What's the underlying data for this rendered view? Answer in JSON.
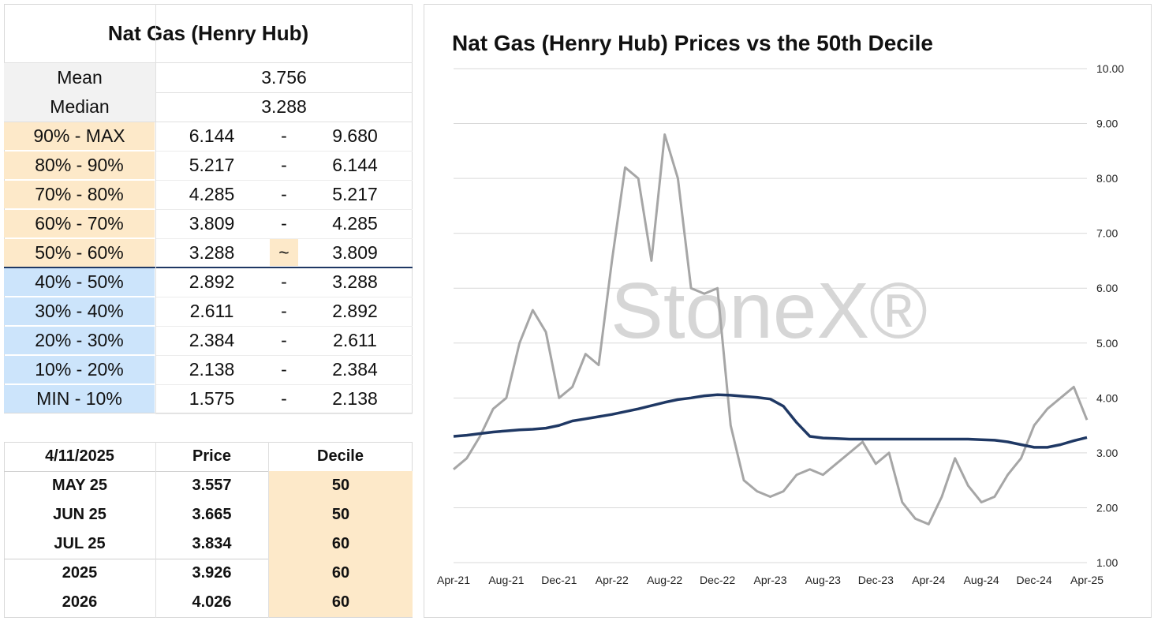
{
  "stats_table": {
    "title": "Nat Gas (Henry Hub)",
    "summary": [
      [
        "Mean",
        "3.756"
      ],
      [
        "Median",
        "3.288"
      ]
    ],
    "deciles": [
      [
        "90% - MAX",
        "6.144",
        "-",
        "9.680"
      ],
      [
        "80% - 90%",
        "5.217",
        "-",
        "6.144"
      ],
      [
        "70% - 80%",
        "4.285",
        "-",
        "5.217"
      ],
      [
        "60% - 70%",
        "3.809",
        "-",
        "4.285"
      ],
      [
        "50% - 60%",
        "3.288",
        "~",
        "3.809"
      ],
      [
        "40% - 50%",
        "2.892",
        "-",
        "3.288"
      ],
      [
        "30% - 40%",
        "2.611",
        "-",
        "2.892"
      ],
      [
        "20% - 30%",
        "2.384",
        "-",
        "2.611"
      ],
      [
        "10% - 20%",
        "2.138",
        "-",
        "2.384"
      ],
      [
        "MIN - 10%",
        "1.575",
        "-",
        "2.138"
      ]
    ]
  },
  "forward_table": {
    "header": [
      "4/11/2025",
      "Price",
      "Decile"
    ],
    "rows": [
      [
        "MAY 25",
        "3.557",
        "50"
      ],
      [
        "JUN 25",
        "3.665",
        "50"
      ],
      [
        "JUL 25",
        "3.834",
        "60"
      ],
      [
        "2025",
        "3.926",
        "60"
      ],
      [
        "2026",
        "4.026",
        "60"
      ]
    ]
  },
  "chart_data": {
    "type": "line",
    "title": "Nat Gas (Henry Hub) Prices vs the 50th Decile",
    "watermark": "StoneX®",
    "x": [
      "Apr-21",
      "May-21",
      "Jun-21",
      "Jul-21",
      "Aug-21",
      "Sep-21",
      "Oct-21",
      "Nov-21",
      "Dec-21",
      "Jan-22",
      "Feb-22",
      "Mar-22",
      "Apr-22",
      "May-22",
      "Jun-22",
      "Jul-22",
      "Aug-22",
      "Sep-22",
      "Oct-22",
      "Nov-22",
      "Dec-22",
      "Jan-23",
      "Feb-23",
      "Mar-23",
      "Apr-23",
      "May-23",
      "Jun-23",
      "Jul-23",
      "Aug-23",
      "Sep-23",
      "Oct-23",
      "Nov-23",
      "Dec-23",
      "Jan-24",
      "Feb-24",
      "Mar-24",
      "Apr-24",
      "May-24",
      "Jun-24",
      "Jul-24",
      "Aug-24",
      "Sep-24",
      "Oct-24",
      "Nov-24",
      "Dec-24",
      "Jan-25",
      "Feb-25",
      "Mar-25",
      "Apr-25"
    ],
    "series": [
      {
        "name": "Price",
        "color": "#a6a6a6",
        "values": [
          2.7,
          2.9,
          3.3,
          3.8,
          4.0,
          5.0,
          5.6,
          5.2,
          4.0,
          4.2,
          4.8,
          4.6,
          6.5,
          8.2,
          8.0,
          6.5,
          8.8,
          8.0,
          6.0,
          5.9,
          6.0,
          3.5,
          2.5,
          2.3,
          2.2,
          2.3,
          2.6,
          2.7,
          2.6,
          2.8,
          3.0,
          3.2,
          2.8,
          3.0,
          2.1,
          1.8,
          1.7,
          2.2,
          2.9,
          2.4,
          2.1,
          2.2,
          2.6,
          2.9,
          3.5,
          3.8,
          4.0,
          4.2,
          3.6
        ]
      },
      {
        "name": "50th Decile",
        "color": "#1f3864",
        "values": [
          3.3,
          3.32,
          3.35,
          3.38,
          3.4,
          3.42,
          3.43,
          3.45,
          3.5,
          3.58,
          3.62,
          3.66,
          3.7,
          3.75,
          3.8,
          3.86,
          3.92,
          3.97,
          4.0,
          4.04,
          4.06,
          4.05,
          4.03,
          4.01,
          3.98,
          3.85,
          3.55,
          3.3,
          3.27,
          3.26,
          3.25,
          3.25,
          3.25,
          3.25,
          3.25,
          3.25,
          3.25,
          3.25,
          3.25,
          3.25,
          3.24,
          3.23,
          3.2,
          3.15,
          3.1,
          3.1,
          3.15,
          3.22,
          3.28
        ]
      }
    ],
    "xticks": [
      "Apr-21",
      "Aug-21",
      "Dec-21",
      "Apr-22",
      "Aug-22",
      "Dec-22",
      "Apr-23",
      "Aug-23",
      "Dec-23",
      "Apr-24",
      "Aug-24",
      "Dec-24",
      "Apr-25"
    ],
    "ylim": [
      1,
      10
    ],
    "yticks": [
      {
        "value": 1,
        "label": "1.00"
      },
      {
        "value": 2,
        "label": "2.00"
      },
      {
        "value": 3,
        "label": "3.00"
      },
      {
        "value": 4,
        "label": "4.00"
      },
      {
        "value": 5,
        "label": "5.00"
      },
      {
        "value": 6,
        "label": "6.00"
      },
      {
        "value": 7,
        "label": "7.00"
      },
      {
        "value": 8,
        "label": "8.00"
      },
      {
        "value": 9,
        "label": "9.00"
      },
      {
        "value": 10,
        "label": "10.00"
      }
    ],
    "grid": true,
    "y_axis_side": "right"
  }
}
